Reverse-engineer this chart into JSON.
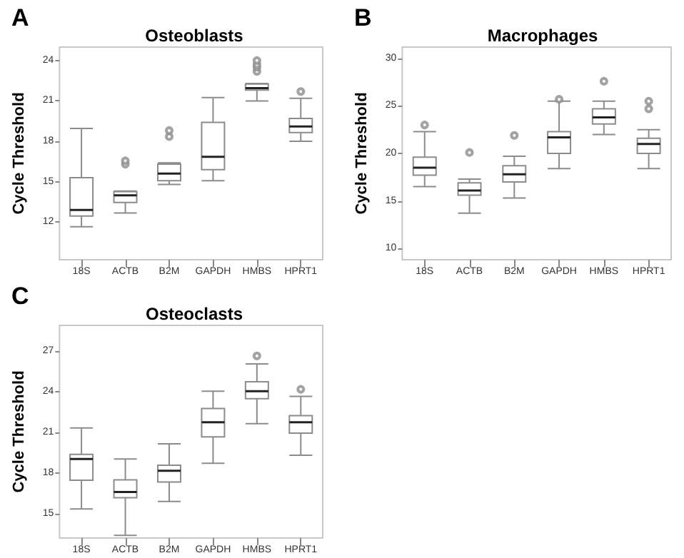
{
  "chart_data": [
    {
      "type": "box",
      "title": "Osteoblasts",
      "ylabel": "Cycle Threshold",
      "annotations": [
        "A"
      ],
      "categories": [
        "18S",
        "ACTB",
        "B2M",
        "GAPDH",
        "HMBS",
        "HPRT1"
      ],
      "ylim": [
        9.2,
        25
      ],
      "yticks": [
        12,
        15,
        18,
        21,
        24
      ],
      "series": [
        {
          "color": "#8c8c8c",
          "boxes": [
            {
              "low": 11.65,
              "q1": 12.45,
              "median": 12.9,
              "q3": 15.3,
              "high": 18.95
            },
            {
              "low": 12.67,
              "q1": 13.45,
              "median": 13.98,
              "q3": 14.26,
              "high": 14.3,
              "outliers": [
                16.3,
                16.55
              ]
            },
            {
              "low": 14.8,
              "q1": 15.07,
              "median": 15.6,
              "q3": 16.3,
              "high": 16.4,
              "outliers": [
                18.35,
                18.8
              ]
            },
            {
              "low": 15.07,
              "q1": 15.9,
              "median": 16.85,
              "q3": 19.4,
              "high": 21.25
            },
            {
              "low": 21.0,
              "q1": 21.8,
              "median": 21.95,
              "q3": 22.25,
              "high": 22.3,
              "outliers": [
                23.2,
                23.5,
                23.7,
                24.0
              ]
            },
            {
              "low": 18.0,
              "q1": 18.65,
              "median": 19.1,
              "q3": 19.7,
              "high": 21.2,
              "outliers": [
                21.7
              ]
            }
          ]
        }
      ]
    },
    {
      "type": "box",
      "title": "Macrophages",
      "ylabel": "Cycle Threshold",
      "annotations": [
        "B"
      ],
      "categories": [
        "18S",
        "ACTB",
        "B2M",
        "GAPDH",
        "HMBS",
        "HPRT1"
      ],
      "ylim": [
        8.8,
        31.2
      ],
      "yticks": [
        10,
        15,
        20,
        25,
        30
      ],
      "series": [
        {
          "color": "#8c8c8c",
          "boxes": [
            {
              "low": 16.5,
              "q1": 17.7,
              "median": 18.5,
              "q3": 19.6,
              "high": 22.3,
              "outliers": [
                23.0
              ]
            },
            {
              "low": 13.7,
              "q1": 15.6,
              "median": 16.1,
              "q3": 16.9,
              "high": 17.3,
              "outliers": [
                20.1
              ]
            },
            {
              "low": 15.3,
              "q1": 17.0,
              "median": 17.8,
              "q3": 18.7,
              "high": 19.7,
              "outliers": [
                21.9
              ]
            },
            {
              "low": 18.4,
              "q1": 20.0,
              "median": 21.7,
              "q3": 22.3,
              "high": 25.5,
              "outliers": [
                25.7
              ]
            },
            {
              "low": 22.0,
              "q1": 23.1,
              "median": 23.8,
              "q3": 24.7,
              "high": 25.5,
              "outliers": [
                27.6
              ]
            },
            {
              "low": 18.4,
              "q1": 20.0,
              "median": 21.0,
              "q3": 21.6,
              "high": 22.5,
              "outliers": [
                24.7,
                25.5
              ]
            }
          ]
        }
      ]
    },
    {
      "type": "box",
      "title": "Osteoclasts",
      "ylabel": "Cycle Threshold",
      "annotations": [
        "C"
      ],
      "categories": [
        "18S",
        "ACTB",
        "B2M",
        "GAPDH",
        "HMBS",
        "HPRT1"
      ],
      "ylim": [
        13.2,
        28.9
      ],
      "yticks": [
        15,
        18,
        21,
        24,
        27
      ],
      "series": [
        {
          "color": "#8c8c8c",
          "boxes": [
            {
              "low": 15.35,
              "q1": 17.47,
              "median": 19.03,
              "q3": 19.38,
              "high": 21.33
            },
            {
              "low": 13.4,
              "q1": 16.18,
              "median": 16.6,
              "q3": 17.5,
              "high": 19.03
            },
            {
              "low": 15.9,
              "q1": 17.33,
              "median": 18.17,
              "q3": 18.58,
              "high": 20.15
            },
            {
              "low": 18.72,
              "q1": 20.67,
              "median": 21.75,
              "q3": 22.76,
              "high": 24.04
            },
            {
              "low": 21.64,
              "q1": 23.49,
              "median": 24.04,
              "q3": 24.74,
              "high": 26.06,
              "outliers": [
                26.65
              ]
            },
            {
              "low": 19.31,
              "q1": 20.95,
              "median": 21.75,
              "q3": 22.23,
              "high": 23.66,
              "outliers": [
                24.18
              ]
            }
          ]
        }
      ]
    }
  ]
}
